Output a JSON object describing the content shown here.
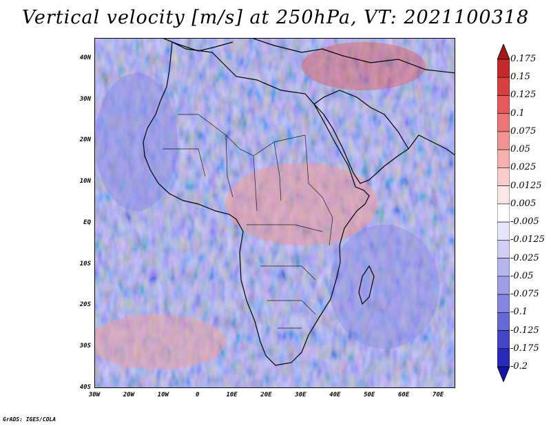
{
  "title": "Vertical velocity [m/s] at 250hPa, VT: 2021100318",
  "credit": "GrADS: IGES/COLA",
  "map": {
    "lon_range": [
      -30,
      75
    ],
    "lat_range": [
      -40,
      45
    ],
    "lat_ticks": [
      "40N",
      "30N",
      "20N",
      "10N",
      "EQ",
      "10S",
      "20S",
      "30S",
      "40S"
    ],
    "lat_values": [
      40,
      30,
      20,
      10,
      0,
      -10,
      -20,
      -30,
      -40
    ],
    "lon_ticks": [
      "30W",
      "20W",
      "10W",
      "0",
      "10E",
      "20E",
      "30E",
      "40E",
      "50E",
      "60E",
      "70E"
    ],
    "lon_values": [
      -30,
      -20,
      -10,
      0,
      10,
      20,
      30,
      40,
      50,
      60,
      70
    ]
  },
  "colorbar": {
    "levels": [
      "0.175",
      "0.15",
      "0.125",
      "0.1",
      "0.075",
      "0.05",
      "0.025",
      "0.0125",
      "0.005",
      "-0.005",
      "-0.0125",
      "-0.025",
      "-0.05",
      "-0.075",
      "-0.1",
      "-0.125",
      "-0.175",
      "-0.2"
    ],
    "colors": [
      "#a01818",
      "#c42a2a",
      "#d84040",
      "#e45a5a",
      "#ec7676",
      "#f29393",
      "#f6b0b0",
      "#facccc",
      "#fde6e6",
      "#ffffff",
      "#e6e6fb",
      "#cfcff5",
      "#b6b6ef",
      "#9e9ee8",
      "#8585e0",
      "#6868d6",
      "#4646c8",
      "#2a2ab8",
      "#1414a0"
    ]
  }
}
